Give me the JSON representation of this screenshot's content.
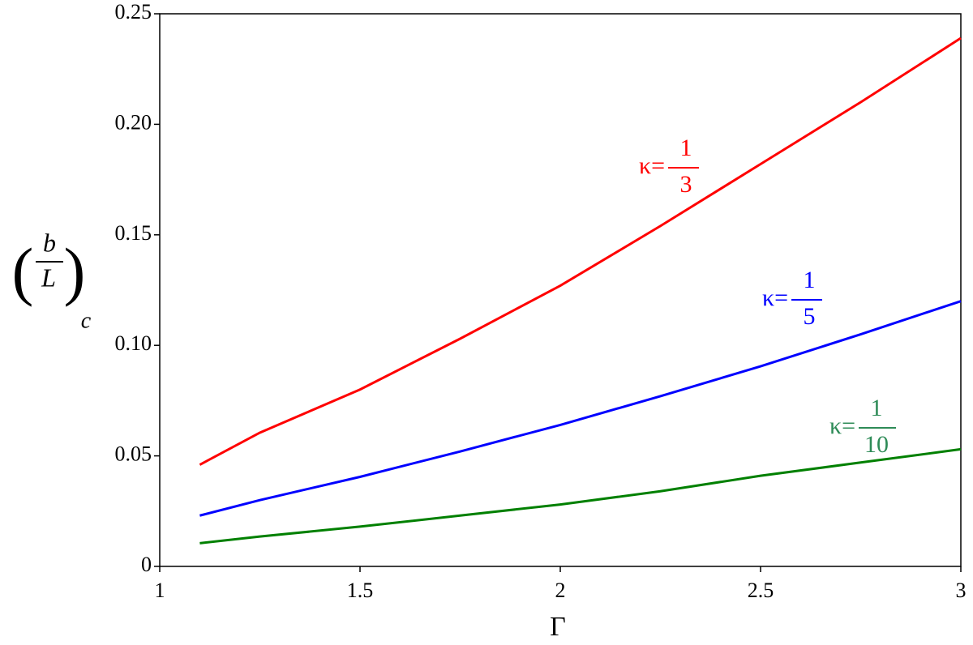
{
  "chart_data": {
    "type": "line",
    "x_label": "Γ",
    "y_label": {
      "numerator": "b",
      "denominator": "L",
      "subscript": "c"
    },
    "x": [
      1.1,
      1.25,
      1.5,
      1.75,
      2,
      2.25,
      2.5,
      2.75,
      3
    ],
    "series": [
      {
        "color": "#ff0000",
        "values": [
          0.046,
          0.0605,
          0.08,
          0.103,
          0.127,
          0.154,
          0.182,
          0.21,
          0.239
        ]
      },
      {
        "color": "#0000ff",
        "values": [
          0.023,
          0.03,
          0.0405,
          0.052,
          0.064,
          0.077,
          0.0905,
          0.105,
          0.12
        ]
      },
      {
        "color": "#008000",
        "values": [
          0.0105,
          0.0135,
          0.018,
          0.023,
          0.028,
          0.034,
          0.041,
          0.047,
          0.053
        ]
      }
    ],
    "annotations": [
      {
        "text": "κ=",
        "numerator": "1",
        "denominator": "3",
        "color": "#ff0000"
      },
      {
        "text": "κ=",
        "numerator": "1",
        "denominator": "5",
        "color": "#0000ff"
      },
      {
        "text": "κ=",
        "numerator": "1",
        "denominator": "10",
        "color": "#2e8b57"
      }
    ],
    "xlim": [
      1,
      3
    ],
    "xticks": [
      1,
      1.5,
      2,
      2.5,
      3
    ],
    "ylim": [
      0,
      0.25
    ],
    "yticks": [
      0,
      0.05,
      {
        "value": 0.1,
        "label": "0.10"
      },
      0.15,
      {
        "value": 0.2,
        "label": "0.20"
      },
      0.25
    ]
  }
}
